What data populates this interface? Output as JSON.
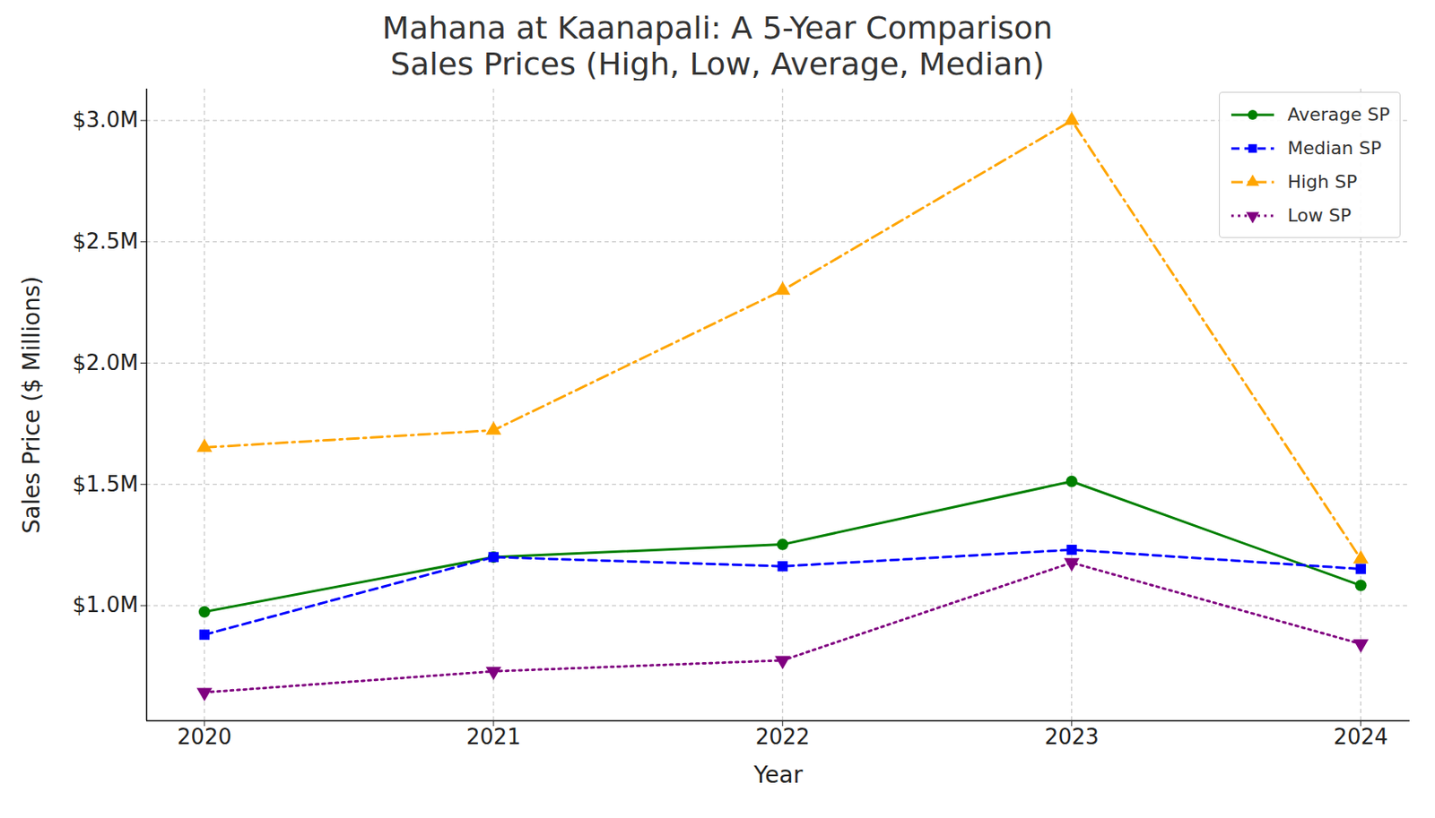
{
  "chart_data": {
    "type": "line",
    "title": "Mahana at Kaanapali: A 5-Year Comparison",
    "subtitle": "Sales Prices (High, Low, Average, Median)",
    "x_label": "Year",
    "y_label": "Sales Price ($ Millions)",
    "x": [
      2020,
      2021,
      2022,
      2023,
      2024
    ],
    "series": [
      {
        "name": "Average SP",
        "color": "#008000",
        "marker": "circle",
        "line_style": "solid",
        "values": [
          0.974,
          1.2,
          1.252,
          1.512,
          1.083
        ]
      },
      {
        "name": "Median SP",
        "color": "#0000ff",
        "marker": "square",
        "line_style": "dashed",
        "values": [
          0.88,
          1.2,
          1.162,
          1.23,
          1.151
        ]
      },
      {
        "name": "High SP",
        "color": "#ffa500",
        "marker": "triangle",
        "line_style": "dashdot",
        "values": [
          1.652,
          1.723,
          2.3,
          3.0,
          1.192
        ]
      },
      {
        "name": "Low SP",
        "color": "#800080",
        "marker": "triangle_down",
        "line_style": "dotted",
        "values": [
          0.642,
          0.729,
          0.774,
          1.177,
          0.842
        ]
      }
    ],
    "xlim": [
      2019.8,
      2024.17
    ],
    "xticks": [
      2020,
      2021,
      2022,
      2023,
      2024
    ],
    "ylim": [
      0.525,
      3.13
    ],
    "yticks": [
      {
        "value": 1.0,
        "label": "$1.0M"
      },
      {
        "value": 1.5,
        "label": "$1.5M"
      },
      {
        "value": 2.0,
        "label": "$2.0M"
      },
      {
        "value": 2.5,
        "label": "$2.5M"
      },
      {
        "value": 3.0,
        "label": "$3.0M"
      }
    ],
    "grid": true,
    "legend": "upper right"
  }
}
